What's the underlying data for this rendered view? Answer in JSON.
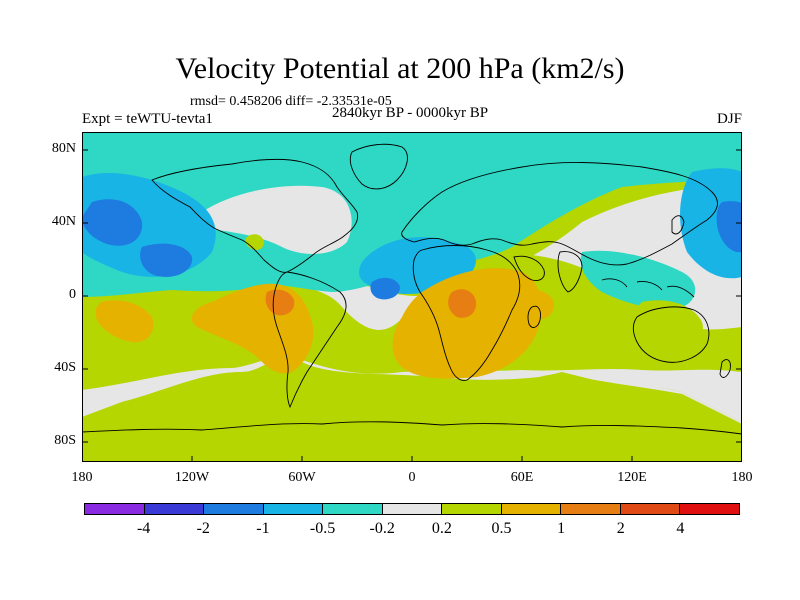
{
  "title": "Velocity Potential at 200 hPa (km2/s)",
  "stats": "rmsd= 0.458206 diff= -2.33531e-05",
  "subtitle": "2840kyr BP - 0000kyr BP",
  "experiment": "Expt = teWTU-tevta1",
  "season": "DJF",
  "y_axis_labels": [
    "80N",
    "40N",
    "0",
    "40S",
    "80S"
  ],
  "x_axis_labels": [
    "180",
    "120W",
    "60W",
    "0",
    "60E",
    "120E",
    "180"
  ],
  "colorbar": {
    "colors": [
      "#8a2be2",
      "#3a3ad6",
      "#1e7be0",
      "#19b4e6",
      "#2ed8c4",
      "#e6e6e6",
      "#b5d600",
      "#e6b200",
      "#e67e14",
      "#e04a14",
      "#e01010"
    ],
    "labels": [
      "-4",
      "-2",
      "-1",
      "-0.5",
      "-0.2",
      "0.2",
      "0.5",
      "1",
      "2",
      "4"
    ]
  },
  "field_colors": {
    "ocean_neg_02": "#2ed8c4",
    "neg_05": "#19b4e6",
    "neg_1": "#1e7be0",
    "neutral": "#e6e6e6",
    "pos_02": "#b5d600",
    "pos_05": "#e6b200",
    "pos_1": "#e67e14"
  }
}
